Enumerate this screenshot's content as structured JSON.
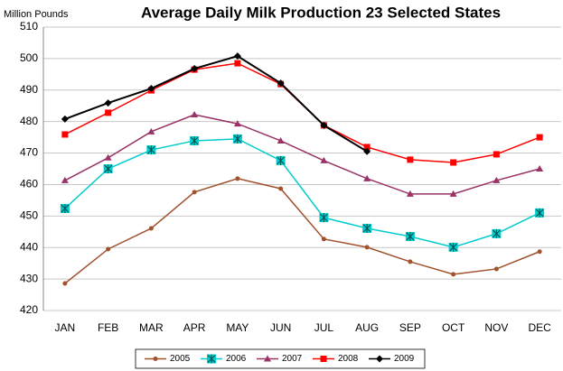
{
  "chart_data": {
    "type": "line",
    "title": "Average Daily Milk Production 23 Selected States",
    "ylabel": "Million Pounds",
    "categories": [
      "JAN",
      "FEB",
      "MAR",
      "APR",
      "MAY",
      "JUN",
      "JUL",
      "AUG",
      "SEP",
      "OCT",
      "NOV",
      "DEC"
    ],
    "series": [
      {
        "name": "2005",
        "color": "#a0522d",
        "marker": "circle",
        "values": [
          428.6,
          439.5,
          446.1,
          457.6,
          461.9,
          458.7,
          442.7,
          440.1,
          435.5,
          431.5,
          433.2,
          438.7
        ]
      },
      {
        "name": "2006",
        "color": "#00cccc",
        "marker": "star-square",
        "values": [
          452.4,
          465,
          471,
          473.9,
          474.5,
          467.6,
          449.5,
          446.1,
          443.5,
          440.1,
          444.4,
          451
        ]
      },
      {
        "name": "2007",
        "color": "#993366",
        "marker": "triangle",
        "values": [
          461.3,
          468.5,
          476.8,
          482.2,
          479.3,
          473.9,
          467.6,
          461.9,
          457,
          457,
          461.3,
          465
        ]
      },
      {
        "name": "2008",
        "color": "#ff0000",
        "marker": "square",
        "values": [
          475.9,
          482.8,
          489.9,
          496.5,
          498.5,
          491.9,
          478.8,
          471.9,
          467.9,
          467,
          469.6,
          475
        ]
      },
      {
        "name": "2009",
        "color": "#000000",
        "marker": "diamond",
        "values": [
          480.8,
          485.9,
          490.5,
          496.8,
          500.8,
          492.2,
          478.8,
          470.5,
          null,
          null,
          null,
          null
        ]
      }
    ],
    "ylim": [
      420,
      510
    ],
    "yticks": [
      420,
      430,
      440,
      450,
      460,
      470,
      480,
      490,
      500,
      510
    ],
    "grid": true,
    "legend": "bottom"
  }
}
